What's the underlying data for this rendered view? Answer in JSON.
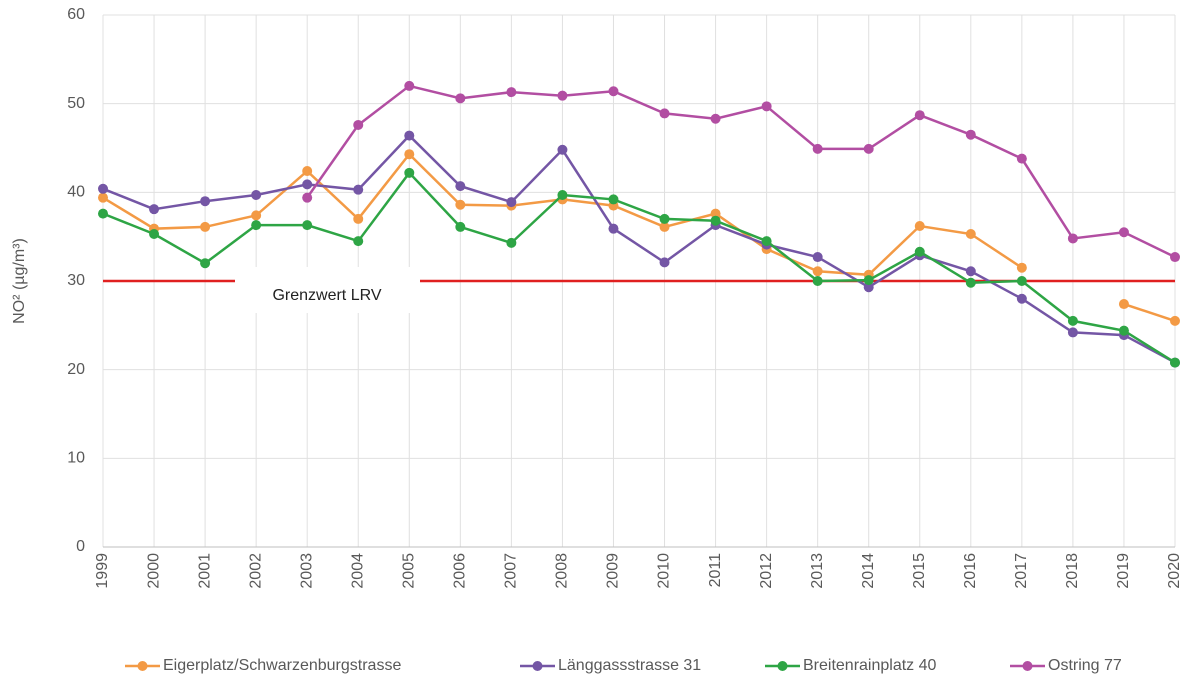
{
  "chart_data": {
    "type": "line",
    "y_label": "NO² (µg/m³)",
    "categories": [
      "1999",
      "2000",
      "2001",
      "2002",
      "2003",
      "2004",
      "2005",
      "2006",
      "2007",
      "2008",
      "2009",
      "2010",
      "2011",
      "2012",
      "2013",
      "2014",
      "2015",
      "2016",
      "2017",
      "2018",
      "2019",
      "2020"
    ],
    "series": [
      {
        "name": "Eigerplatz/Schwarzenburgstrasse",
        "color": "#f39a45",
        "values": [
          39.4,
          35.9,
          36.1,
          37.4,
          42.4,
          37.0,
          44.3,
          38.6,
          38.5,
          39.2,
          38.5,
          36.1,
          37.6,
          33.6,
          31.1,
          30.7,
          36.2,
          35.3,
          31.5,
          null,
          27.4,
          25.5
        ]
      },
      {
        "name": "Länggassstrasse 31",
        "color": "#7456a5",
        "values": [
          40.4,
          38.1,
          39.0,
          39.7,
          40.9,
          40.3,
          46.4,
          40.7,
          38.9,
          44.8,
          35.9,
          32.1,
          36.3,
          34.1,
          32.7,
          29.3,
          32.9,
          31.1,
          28.0,
          24.2,
          23.9,
          20.8
        ]
      },
      {
        "name": "Breitenrainplatz 40",
        "color": "#2ea545",
        "values": [
          37.6,
          35.3,
          32.0,
          36.3,
          36.3,
          34.5,
          42.2,
          36.1,
          34.3,
          39.7,
          39.2,
          37.0,
          36.8,
          34.5,
          30.0,
          30.1,
          33.3,
          29.8,
          30.0,
          25.5,
          24.4,
          20.8
        ]
      },
      {
        "name": "Ostring 77",
        "color": "#b24ea2",
        "values": [
          null,
          null,
          null,
          null,
          39.4,
          47.6,
          52.0,
          50.6,
          51.3,
          50.9,
          51.4,
          48.9,
          48.3,
          49.7,
          44.9,
          44.9,
          48.7,
          46.5,
          43.8,
          34.8,
          35.5,
          32.7
        ]
      }
    ],
    "threshold": {
      "text": "Grenzwert LRV",
      "value": 30,
      "color": "#e02020"
    },
    "ylim": [
      0,
      60
    ],
    "yticks": [
      0,
      10,
      20,
      30,
      40,
      50,
      60
    ],
    "grid": true,
    "legend": "bottom"
  }
}
